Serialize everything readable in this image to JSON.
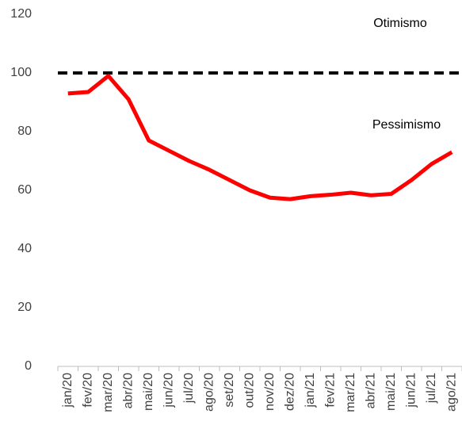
{
  "chart_data": {
    "type": "line",
    "categories": [
      "jan/20",
      "fev/20",
      "mar/20",
      "abr/20",
      "mai/20",
      "jun/20",
      "jul/20",
      "ago/20",
      "set/20",
      "out/20",
      "nov/20",
      "dez/20",
      "jan/21",
      "fev/21",
      "mar/21",
      "abr/21",
      "mai/21",
      "jun/21",
      "jul/21",
      "ago/21"
    ],
    "series": [
      {
        "color": "#ff0000",
        "values": [
          93,
          93.5,
          99,
          91,
          77,
          73.5,
          70,
          67,
          63.5,
          60,
          57.5,
          57,
          58,
          58.5,
          59.2,
          58.3,
          58.8,
          63.5,
          69,
          73
        ]
      }
    ],
    "hlines": [
      {
        "value": 100,
        "color": "#000000",
        "style": "dashed"
      }
    ],
    "annotations": [
      "Otimismo",
      "Pessimismo"
    ],
    "ylim": [
      0,
      120
    ],
    "yticks": [
      0,
      20,
      40,
      60,
      80,
      100,
      120
    ],
    "grid": false
  }
}
